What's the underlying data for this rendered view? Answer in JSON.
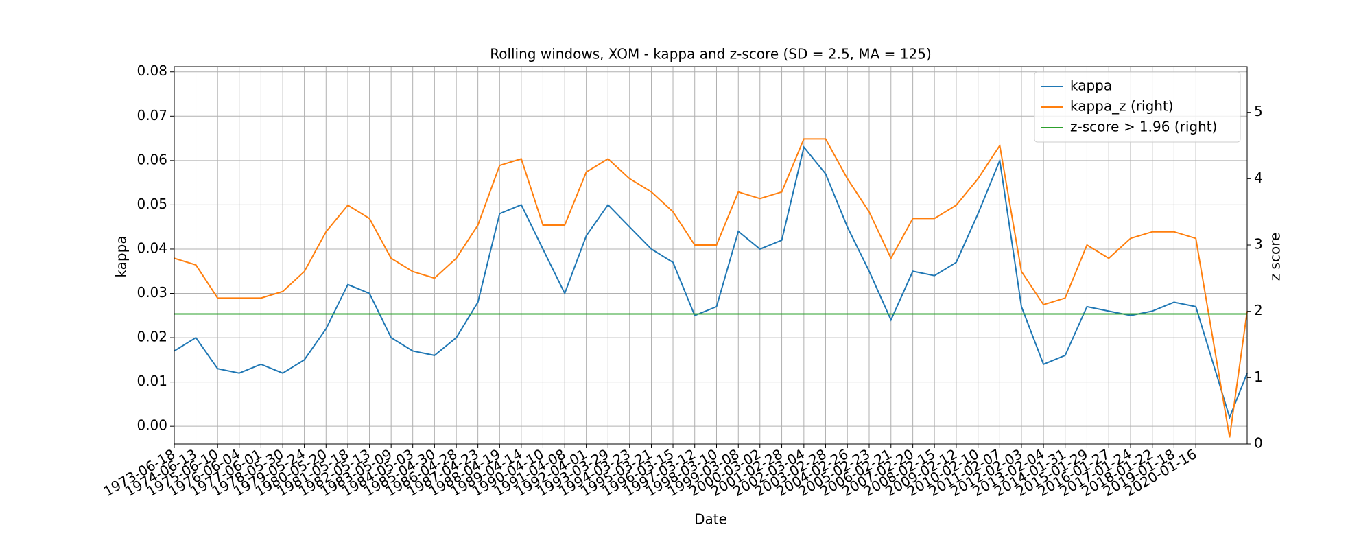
{
  "chart_data": {
    "type": "line",
    "title": "Rolling windows, XOM - kappa and z-score (SD = 2.5, MA = 125)",
    "xlabel": "Date",
    "ylabel": "kappa",
    "y2label": "z score",
    "x": [
      "1973-06-18",
      "1974-06-13",
      "1975-06-10",
      "1976-06-04",
      "1977-06-01",
      "1978-05-30",
      "1979-05-24",
      "1980-05-20",
      "1981-05-18",
      "1982-05-13",
      "1983-05-09",
      "1984-05-03",
      "1985-04-30",
      "1986-04-28",
      "1987-04-23",
      "1988-04-19",
      "1989-04-14",
      "1990-04-10",
      "1991-04-08",
      "1992-04-01",
      "1993-03-29",
      "1994-03-23",
      "1995-03-21",
      "1996-03-15",
      "1997-03-12",
      "1998-03-10",
      "1999-03-08",
      "2000-03-02",
      "2001-02-28",
      "2002-03-04",
      "2003-02-28",
      "2004-02-26",
      "2005-02-23",
      "2006-02-21",
      "2007-02-20",
      "2008-02-15",
      "2009-02-12",
      "2010-02-10",
      "2011-02-07",
      "2012-02-03",
      "2013-02-04",
      "2014-01-31",
      "2015-01-29",
      "2016-01-27",
      "2017-01-24",
      "2018-01-22",
      "2019-01-18",
      "2020-01-16",
      "2021-08-01",
      "2022-05-20"
    ],
    "series": [
      {
        "name": "kappa",
        "color": "#1f77b4",
        "values": [
          0.017,
          0.02,
          0.013,
          0.012,
          0.014,
          0.012,
          0.015,
          0.022,
          0.032,
          0.03,
          0.02,
          0.017,
          0.016,
          0.02,
          0.028,
          0.048,
          0.05,
          0.04,
          0.03,
          0.043,
          0.05,
          0.045,
          0.04,
          0.037,
          0.025,
          0.027,
          0.044,
          0.04,
          0.042,
          0.063,
          0.057,
          0.045,
          0.035,
          0.024,
          0.035,
          0.034,
          0.037,
          0.048,
          0.06,
          0.027,
          0.014,
          0.016,
          0.027,
          0.026,
          0.025,
          0.026,
          0.028,
          0.027,
          0.002,
          0.012
        ]
      },
      {
        "name": "kappa_z (right)",
        "color": "#ff7f0e",
        "axis": "y2",
        "values": [
          2.8,
          2.7,
          2.2,
          2.2,
          2.2,
          2.3,
          2.6,
          3.2,
          3.6,
          3.4,
          2.8,
          2.6,
          2.5,
          2.8,
          3.3,
          4.2,
          4.3,
          3.3,
          3.3,
          4.1,
          4.3,
          4.0,
          3.8,
          3.5,
          3.0,
          3.0,
          3.8,
          3.7,
          3.8,
          4.6,
          4.6,
          4.0,
          3.5,
          2.8,
          3.4,
          3.4,
          3.6,
          4.0,
          4.5,
          2.6,
          2.1,
          2.2,
          3.0,
          2.8,
          3.1,
          3.2,
          3.2,
          3.1,
          0.1,
          2.0
        ]
      },
      {
        "name": "z-score > 1.96 (right)",
        "color": "#2ca02c",
        "axis": "y2",
        "values": [
          1.96,
          1.96,
          1.96,
          1.96,
          1.96,
          1.96,
          1.96,
          1.96,
          1.96,
          1.96,
          1.96,
          1.96,
          1.96,
          1.96,
          1.96,
          1.96,
          1.96,
          1.96,
          1.96,
          1.96,
          1.96,
          1.96,
          1.96,
          1.96,
          1.96,
          1.96,
          1.96,
          1.96,
          1.96,
          1.96,
          1.96,
          1.96,
          1.96,
          1.96,
          1.96,
          1.96,
          1.96,
          1.96,
          1.96,
          1.96,
          1.96,
          1.96,
          1.96,
          1.96,
          1.96,
          1.96,
          1.96,
          1.96,
          1.96,
          1.96
        ]
      }
    ],
    "xlim": [
      "1973-06-18",
      "2022-05-20"
    ],
    "xticks": [
      "1973-06-18",
      "1974-06-13",
      "1975-06-10",
      "1976-06-04",
      "1977-06-01",
      "1978-05-30",
      "1979-05-24",
      "1980-05-20",
      "1981-05-18",
      "1982-05-13",
      "1983-05-09",
      "1984-05-03",
      "1985-04-30",
      "1986-04-28",
      "1987-04-23",
      "1988-04-19",
      "1989-04-14",
      "1990-04-10",
      "1991-04-08",
      "1992-04-01",
      "1993-03-29",
      "1994-03-23",
      "1995-03-21",
      "1996-03-15",
      "1997-03-12",
      "1998-03-10",
      "1999-03-08",
      "2000-03-02",
      "2001-02-28",
      "2002-03-04",
      "2003-02-28",
      "2004-02-26",
      "2005-02-23",
      "2006-02-21",
      "2007-02-20",
      "2008-02-15",
      "2009-02-12",
      "2010-02-10",
      "2011-02-07",
      "2012-02-03",
      "2013-02-04",
      "2014-01-31",
      "2015-01-29",
      "2016-01-27",
      "2017-01-24",
      "2018-01-22",
      "2019-01-18",
      "2020-01-16"
    ],
    "ylim": [
      -0.004,
      0.0812
    ],
    "yticks": [
      {
        "value": 0,
        "label": "0.00"
      },
      0.01,
      0.02,
      0.03,
      0.04,
      0.05,
      0.06,
      0.07,
      0.08
    ],
    "y2lim": [
      0,
      5.69
    ],
    "y2ticks": [
      0,
      1,
      2,
      3,
      4,
      5
    ],
    "grid": true,
    "legend": "upper right"
  }
}
